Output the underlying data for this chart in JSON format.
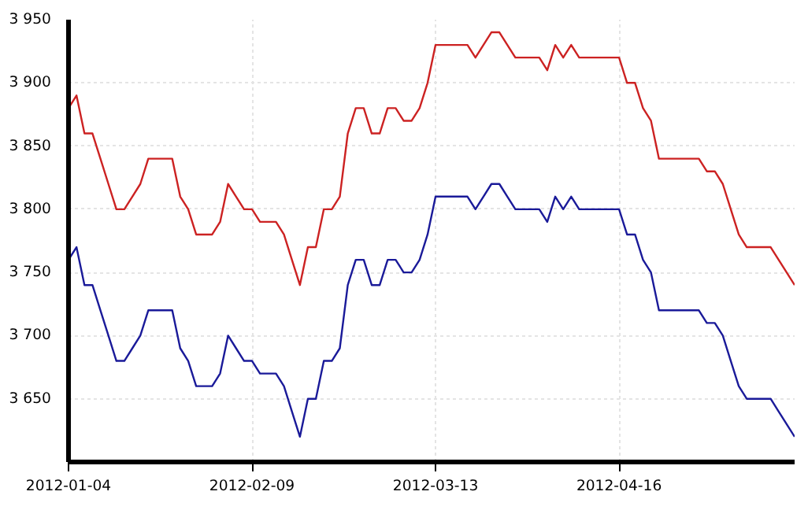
{
  "chart_data": {
    "type": "line",
    "categories": [
      "2012-01-04",
      null,
      null,
      null,
      null,
      null,
      null,
      null,
      null,
      null,
      null,
      null,
      null,
      null,
      null,
      null,
      null,
      null,
      null,
      null,
      null,
      null,
      null,
      "2012-02-09",
      null,
      null,
      null,
      null,
      null,
      null,
      null,
      null,
      null,
      null,
      null,
      null,
      null,
      null,
      null,
      null,
      null,
      null,
      null,
      null,
      null,
      null,
      "2012-03-13",
      null,
      null,
      null,
      null,
      null,
      null,
      null,
      null,
      null,
      null,
      null,
      null,
      null,
      null,
      null,
      null,
      null,
      null,
      null,
      null,
      null,
      null,
      "2012-04-16",
      null,
      null,
      null,
      null,
      null,
      null,
      null,
      null,
      null,
      null,
      null,
      null,
      null,
      null,
      null,
      null,
      null,
      null,
      null,
      null,
      null,
      null
    ],
    "series": [
      {
        "color": "#cc2222",
        "values": [
          3880,
          3890,
          3860,
          3860,
          3840,
          3820,
          3800,
          3800,
          3810,
          3820,
          3840,
          3840,
          3840,
          3840,
          3810,
          3800,
          3780,
          3780,
          3780,
          3790,
          3820,
          3810,
          3800,
          3800,
          3790,
          3790,
          3790,
          3780,
          3760,
          3740,
          3770,
          3770,
          3800,
          3800,
          3810,
          3860,
          3880,
          3880,
          3860,
          3860,
          3880,
          3880,
          3870,
          3870,
          3880,
          3900,
          3930,
          3930,
          3930,
          3930,
          3930,
          3920,
          3930,
          3940,
          3940,
          3930,
          3920,
          3920,
          3920,
          3920,
          3910,
          3930,
          3920,
          3930,
          3920,
          3920,
          3920,
          3920,
          3920,
          3920,
          3900,
          3900,
          3880,
          3870,
          3840,
          3840,
          3840,
          3840,
          3840,
          3840,
          3830,
          3830,
          3820,
          3800,
          3780,
          3770,
          3770,
          3770,
          3770,
          3760,
          3750,
          3740
        ]
      },
      {
        "color": "#1a1a99",
        "values": [
          3760,
          3770,
          3740,
          3740,
          3720,
          3700,
          3680,
          3680,
          3690,
          3700,
          3720,
          3720,
          3720,
          3720,
          3690,
          3680,
          3660,
          3660,
          3660,
          3670,
          3700,
          3690,
          3680,
          3680,
          3670,
          3670,
          3670,
          3660,
          3640,
          3620,
          3650,
          3650,
          3680,
          3680,
          3690,
          3740,
          3760,
          3760,
          3740,
          3740,
          3760,
          3760,
          3750,
          3750,
          3760,
          3780,
          3810,
          3810,
          3810,
          3810,
          3810,
          3800,
          3810,
          3820,
          3820,
          3810,
          3800,
          3800,
          3800,
          3800,
          3790,
          3810,
          3800,
          3810,
          3800,
          3800,
          3800,
          3800,
          3800,
          3800,
          3780,
          3780,
          3760,
          3750,
          3720,
          3720,
          3720,
          3720,
          3720,
          3720,
          3710,
          3710,
          3700,
          3680,
          3660,
          3650,
          3650,
          3650,
          3650,
          3640,
          3630,
          3620
        ]
      }
    ],
    "ylim": [
      3600,
      3950
    ],
    "yticks": [
      {
        "value": 3650,
        "label": "3 650"
      },
      {
        "value": 3700,
        "label": "3 700"
      },
      {
        "value": 3750,
        "label": "3 750"
      },
      {
        "value": 3800,
        "label": "3 800"
      },
      {
        "value": 3850,
        "label": "3 850"
      },
      {
        "value": 3900,
        "label": "3 900"
      },
      {
        "value": 3950,
        "label": "3 950"
      }
    ],
    "grid": true,
    "marker": "none",
    "line_style": "solid"
  }
}
